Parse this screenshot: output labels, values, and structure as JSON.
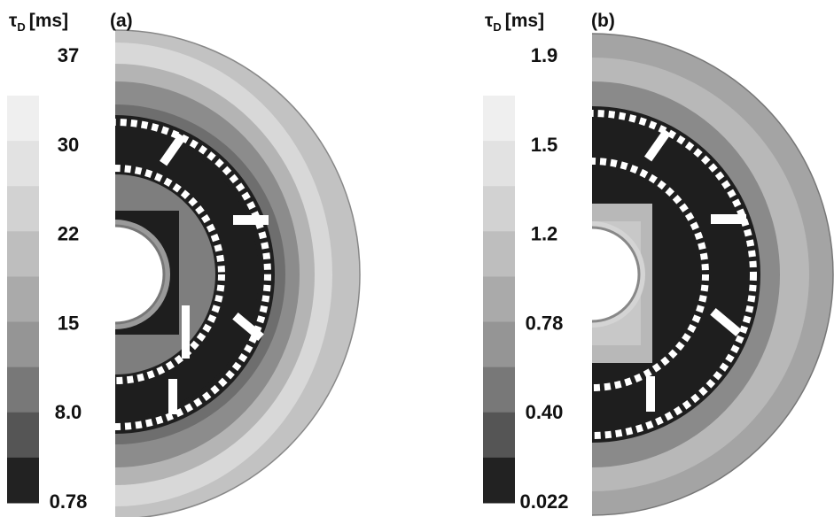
{
  "panels": [
    {
      "label": "(a)",
      "colorbar": {
        "symbol": "τ",
        "subscript": "D",
        "unit": "[ms]",
        "ticks": [
          "37",
          "30",
          "22",
          "15",
          "8.0",
          "0.78"
        ]
      }
    },
    {
      "label": "(b)",
      "colorbar": {
        "symbol": "τ",
        "subscript": "D",
        "unit": "[ms]",
        "ticks": [
          "1.9",
          "1.5",
          "1.2",
          "0.78",
          "0.40",
          "0.022"
        ]
      }
    }
  ]
}
